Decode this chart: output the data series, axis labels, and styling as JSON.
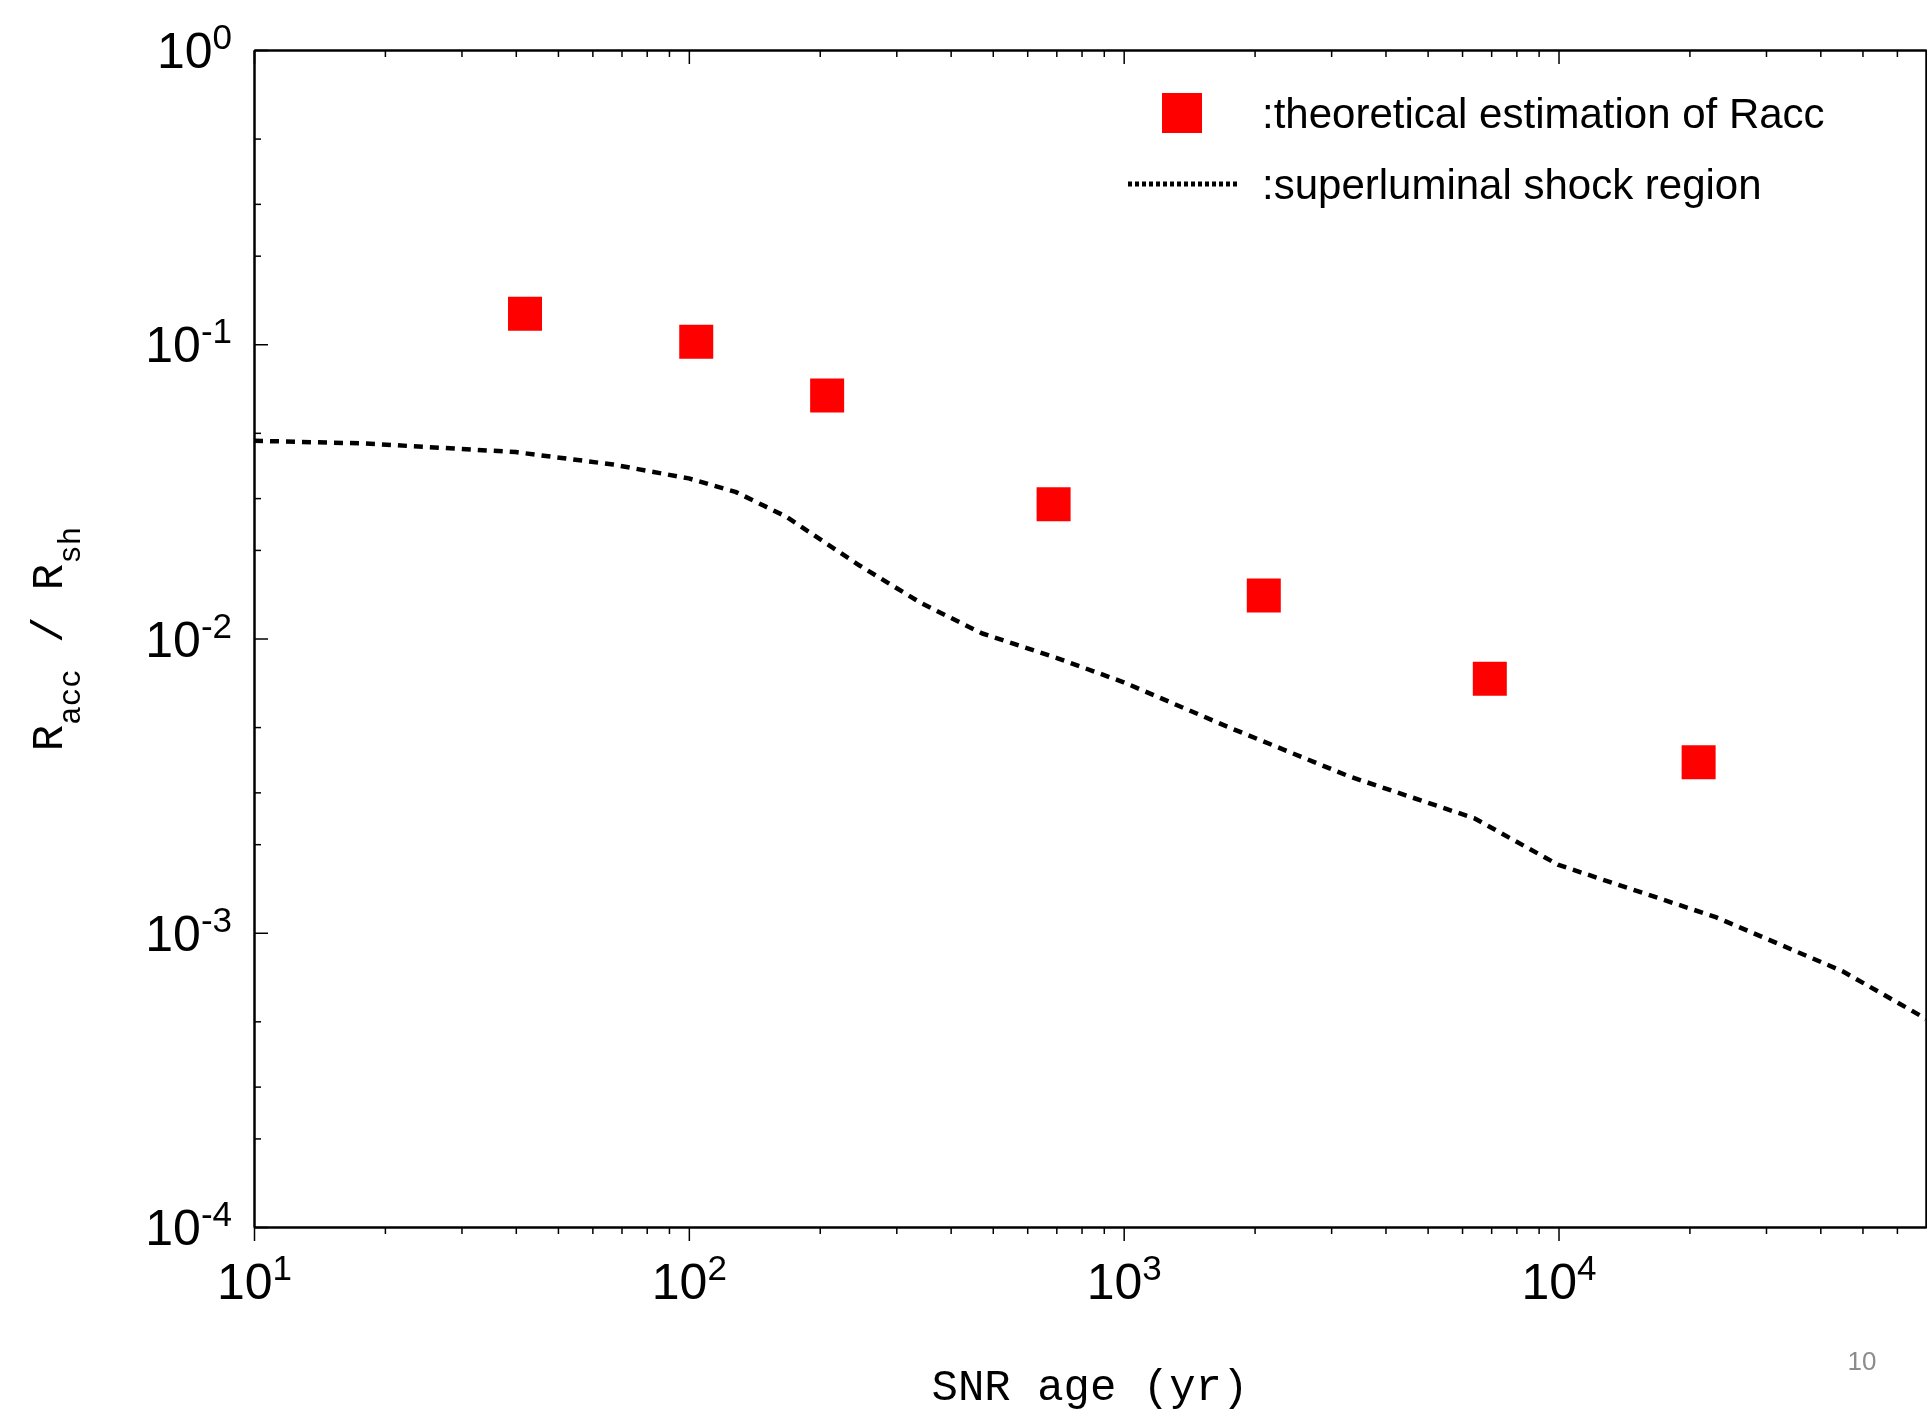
{
  "chart_data": {
    "type": "scatter",
    "xlabel": "SNR age (yr)",
    "ylabel": "R$_{acc}$  /  R$_{sh}$",
    "log": "xy",
    "legend": "top right",
    "xlim": [
      10,
      70000
    ],
    "ylim": [
      0.0001,
      1
    ],
    "xticks": [
      {
        "value": 10,
        "label": "10$^{1}$"
      },
      {
        "value": 20,
        "label": null
      },
      {
        "value": 30,
        "label": null
      },
      {
        "value": 40,
        "label": null
      },
      {
        "value": 50,
        "label": null
      },
      {
        "value": 60,
        "label": null
      },
      {
        "value": 70,
        "label": null
      },
      {
        "value": 80,
        "label": null
      },
      {
        "value": 90,
        "label": null
      },
      {
        "value": 100,
        "label": "10$^{2}$"
      },
      {
        "value": 200,
        "label": null
      },
      {
        "value": 300,
        "label": null
      },
      {
        "value": 400,
        "label": null
      },
      {
        "value": 500,
        "label": null
      },
      {
        "value": 600,
        "label": null
      },
      {
        "value": 700,
        "label": null
      },
      {
        "value": 800,
        "label": null
      },
      {
        "value": 900,
        "label": null
      },
      {
        "value": 1000,
        "label": "10$^{3}$"
      },
      {
        "value": 2000,
        "label": null
      },
      {
        "value": 3000,
        "label": null
      },
      {
        "value": 4000,
        "label": null
      },
      {
        "value": 5000,
        "label": null
      },
      {
        "value": 6000,
        "label": null
      },
      {
        "value": 7000,
        "label": null
      },
      {
        "value": 8000,
        "label": null
      },
      {
        "value": 9000,
        "label": null
      },
      {
        "value": 10000,
        "label": "10$^{4}$"
      },
      {
        "value": 20000,
        "label": null
      },
      {
        "value": 30000,
        "label": null
      },
      {
        "value": 40000,
        "label": null
      },
      {
        "value": 50000,
        "label": null
      },
      {
        "value": 60000,
        "label": null
      }
    ],
    "yticks": [
      {
        "value": 0.0001,
        "label": "10$^{-4}$"
      },
      {
        "value": 0.0002,
        "label": null
      },
      {
        "value": 0.0003,
        "label": null
      },
      {
        "value": 0.0005,
        "label": null
      },
      {
        "value": 0.001,
        "label": "10$^{-3}$"
      },
      {
        "value": 0.002,
        "label": null
      },
      {
        "value": 0.003,
        "label": null
      },
      {
        "value": 0.005,
        "label": null
      },
      {
        "value": 0.01,
        "label": "10$^{-2}$"
      },
      {
        "value": 0.02,
        "label": null
      },
      {
        "value": 0.03,
        "label": null
      },
      {
        "value": 0.05,
        "label": null
      },
      {
        "value": 0.1,
        "label": "10$^{-1}$"
      },
      {
        "value": 0.2,
        "label": null
      },
      {
        "value": 0.3,
        "label": null
      },
      {
        "value": 0.5,
        "label": null
      },
      {
        "value": 1,
        "label": "10$^{0}$"
      }
    ],
    "series": [
      {
        "name": ":theoretical estimation of Racc",
        "marker": "square",
        "color": "#ff0000",
        "x": [
          42,
          104,
          208,
          690,
          2100,
          6950,
          21000
        ],
        "values": [
          0.127,
          0.102,
          0.067,
          0.0286,
          0.014,
          0.0073,
          0.0038
        ]
      },
      {
        "name": ":superluminal shock region",
        "type": "line",
        "marker": "none",
        "line_style": "dashed",
        "color": "#000000",
        "x": [
          10,
          18,
          40,
          67,
          100,
          128,
          167,
          247,
          342,
          473,
          700,
          1000,
          1740,
          3300,
          6400,
          10000,
          23000,
          45000,
          70000
        ],
        "values": [
          0.047,
          0.046,
          0.043,
          0.039,
          0.035,
          0.0315,
          0.026,
          0.0177,
          0.0132,
          0.0104,
          0.0086,
          0.0071,
          0.005,
          0.0034,
          0.00245,
          0.0017,
          0.00113,
          0.00074,
          0.00051
        ]
      }
    ],
    "annotations": [
      "10"
    ]
  }
}
